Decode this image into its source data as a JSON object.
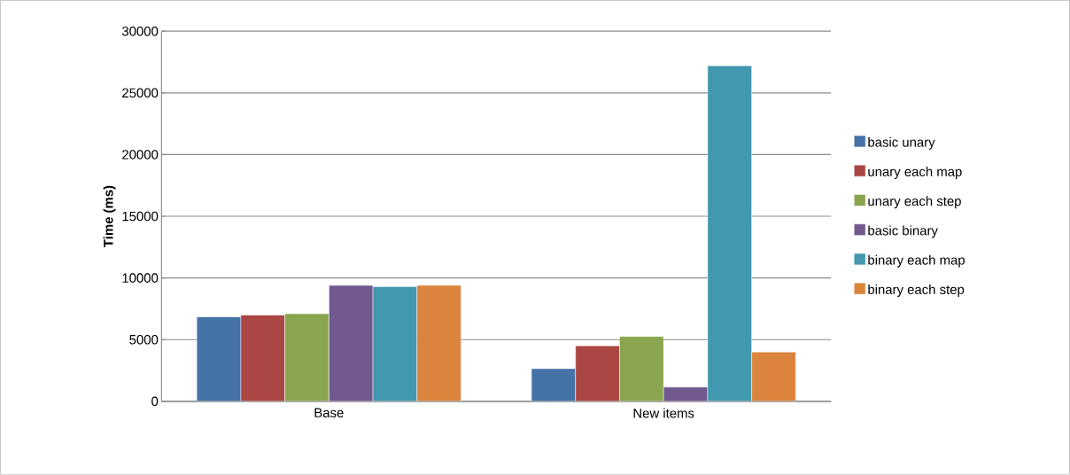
{
  "chart_data": {
    "type": "bar",
    "ylabel": "Time (ms)",
    "categories": [
      "Base",
      "New items"
    ],
    "series": [
      {
        "name": "basic unary",
        "color": "#4572a7",
        "values": [
          6850,
          2650
        ]
      },
      {
        "name": "unary each map",
        "color": "#aa4643",
        "values": [
          7000,
          4500
        ]
      },
      {
        "name": "unary each step",
        "color": "#89a54e",
        "values": [
          7100,
          5250
        ]
      },
      {
        "name": "basic binary",
        "color": "#71588f",
        "values": [
          9400,
          1150
        ]
      },
      {
        "name": "binary each map",
        "color": "#4198af",
        "values": [
          9300,
          27200
        ]
      },
      {
        "name": "binary each step",
        "color": "#db843d",
        "values": [
          9400,
          4000
        ]
      }
    ],
    "ylim": [
      0,
      30000
    ],
    "yticks": [
      0,
      5000,
      10000,
      15000,
      20000,
      25000,
      30000
    ],
    "grid": "y",
    "legend": "right"
  }
}
